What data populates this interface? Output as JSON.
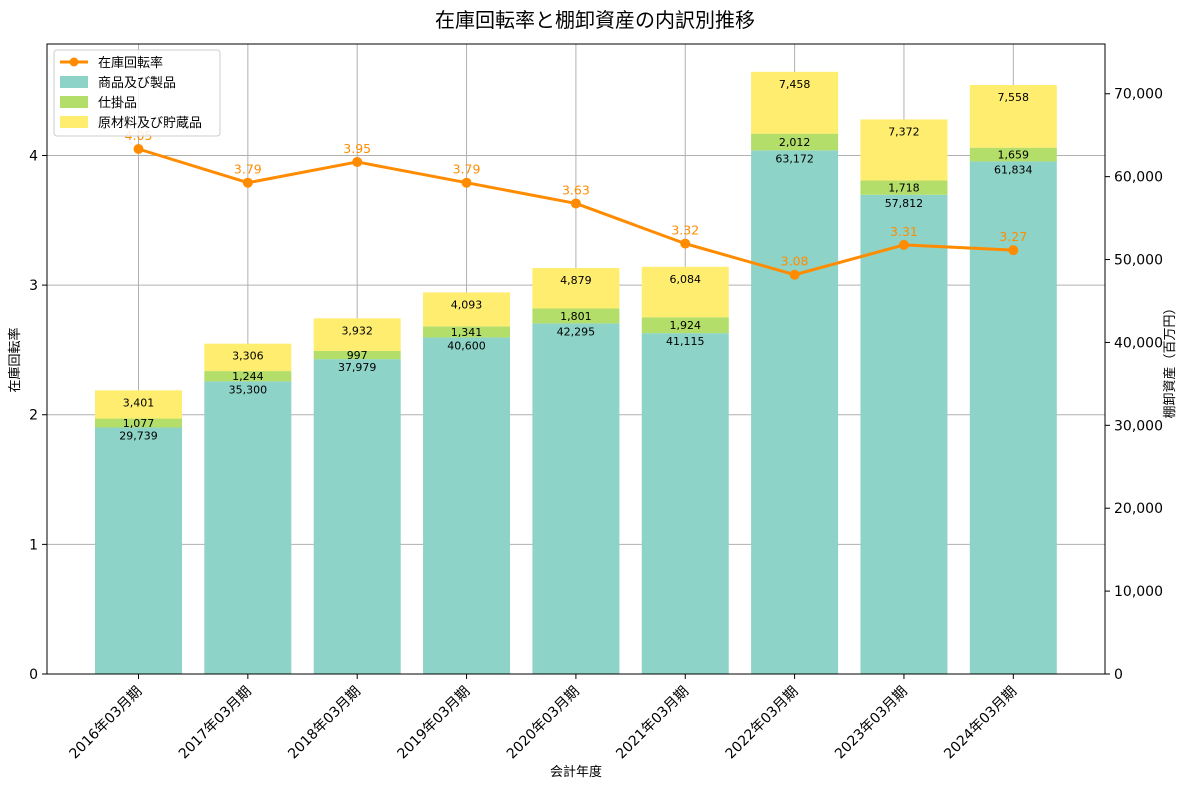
{
  "chart_data": {
    "type": "bar",
    "title": "在庫回転率と棚卸資産の内訳別推移",
    "xlabel": "会計年度",
    "ylabel_left": "在庫回転率",
    "ylabel_right": "棚卸資産（百万円）",
    "categories": [
      "2016年03月期",
      "2017年03月期",
      "2018年03月期",
      "2019年03月期",
      "2020年03月期",
      "2021年03月期",
      "2022年03月期",
      "2023年03月期",
      "2024年03月期"
    ],
    "stacked_series": [
      {
        "name": "商品及び製品",
        "color": "#8dd3c7",
        "values": [
          29739,
          35300,
          37979,
          40600,
          42295,
          41115,
          63172,
          57812,
          61834
        ],
        "labels": [
          "29,739",
          "35,300",
          "37,979",
          "40,600",
          "42,295",
          "41,115",
          "63,172",
          "57,812",
          "61,834"
        ]
      },
      {
        "name": "仕掛品",
        "color": "#b3de69",
        "values": [
          1077,
          1244,
          997,
          1341,
          1801,
          1924,
          2012,
          1718,
          1659
        ],
        "labels": [
          "1,077",
          "1,244",
          "997",
          "1,341",
          "1,801",
          "1,924",
          "2,012",
          "1,718",
          "1,659"
        ]
      },
      {
        "name": "原材料及び貯蔵品",
        "color": "#ffed6f",
        "values": [
          3401,
          3306,
          3932,
          4093,
          4879,
          6084,
          7458,
          7372,
          7558
        ],
        "labels": [
          "3,401",
          "3,306",
          "3,932",
          "4,093",
          "4,879",
          "6,084",
          "7,458",
          "7,372",
          "7,558"
        ]
      }
    ],
    "line_series": {
      "name": "在庫回転率",
      "color": "#ff8c00",
      "values": [
        4.05,
        3.79,
        3.95,
        3.79,
        3.63,
        3.32,
        3.08,
        3.31,
        3.27
      ],
      "labels": [
        "4.05",
        "3.79",
        "3.95",
        "3.79",
        "3.63",
        "3.32",
        "3.08",
        "3.31",
        "3.27"
      ]
    },
    "ylim_left": [
      0,
      4.86
    ],
    "ylim_right": [
      0,
      76000
    ],
    "yticks_left": [
      "0",
      "1",
      "2",
      "3",
      "4"
    ],
    "yticks_right": [
      "0",
      "10,000",
      "20,000",
      "30,000",
      "40,000",
      "50,000",
      "60,000",
      "70,000"
    ],
    "grid": true,
    "legend_position": "top-left"
  }
}
